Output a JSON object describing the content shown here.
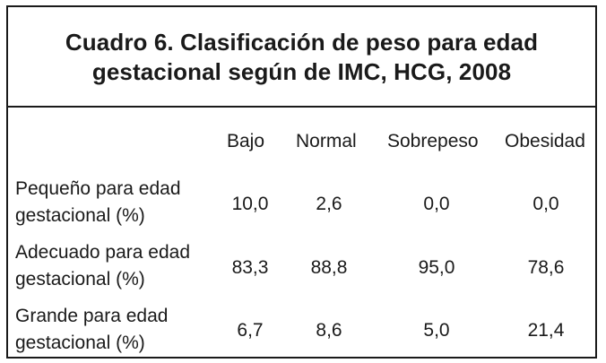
{
  "table": {
    "title_line1": "Cuadro 6. Clasificación de peso para edad",
    "title_line2": "gestacional según de IMC, HCG, 2008",
    "columns": [
      "Bajo",
      "Normal",
      "Sobrepeso",
      "Obesidad"
    ],
    "rows": [
      {
        "label_line1": "Pequeño para edad",
        "label_line2": "gestacional (%)",
        "values": [
          "10,0",
          "2,6",
          "0,0",
          "0,0"
        ]
      },
      {
        "label_line1": "Adecuado para edad",
        "label_line2": "gestacional (%)",
        "values": [
          "83,3",
          "88,8",
          "95,0",
          "78,6"
        ]
      },
      {
        "label_line1": "Grande para edad",
        "label_line2": "gestacional (%)",
        "values": [
          "6,7",
          "8,6",
          "5,0",
          "21,4"
        ]
      }
    ]
  }
}
